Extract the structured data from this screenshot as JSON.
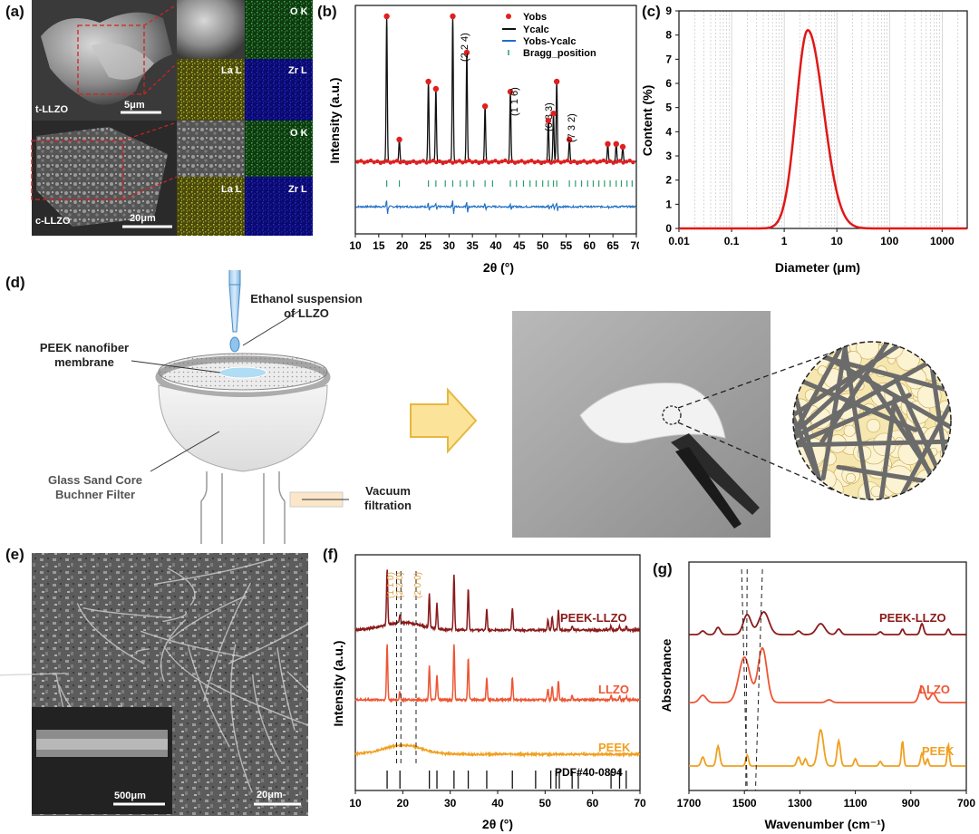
{
  "panels": {
    "a": "(a)",
    "b": "(b)",
    "c": "(c)",
    "d": "(d)",
    "e": "(e)",
    "f": "(f)",
    "g": "(g)"
  },
  "panel_a": {
    "top_label": "t-LLZO",
    "top_scale": "5μm",
    "bottom_label": "c-LLZO",
    "bottom_scale": "20μm",
    "maps": {
      "ok": "O K",
      "lal": "La L",
      "zrl": "Zr L"
    },
    "colors": {
      "ok": "#1f7a1f",
      "lal": "#8a8a1a",
      "zrl": "#1a1ab4"
    }
  },
  "panel_d": {
    "ethanol": "Ethanol suspension of LLZO",
    "ethanol_l1": "Ethanol suspension",
    "ethanol_l2": "of LLZO",
    "peek_l1": "PEEK nanofiber",
    "peek_l2": "membrane",
    "glass_l1": "Glass Sand Core",
    "glass_l2": "Buchner Filter",
    "vac_l1": "Vacuum",
    "vac_l2": "filtration"
  },
  "panel_e": {
    "scale_main": "20μm",
    "scale_inset": "500μm"
  },
  "chart_data": [
    {
      "id": "b",
      "type": "line",
      "xlabel": "2θ (°)",
      "ylabel": "Intensity (a.u.)",
      "xlim": [
        10,
        70
      ],
      "xticks": [
        10,
        15,
        20,
        25,
        30,
        35,
        40,
        45,
        50,
        55,
        60,
        65,
        70
      ],
      "legend": [
        "Yobs",
        "Ycalc",
        "Yobs-Ycalc",
        "Bragg_position"
      ],
      "legend_position": "top-right",
      "peaks_2theta": [
        16.7,
        19.4,
        25.6,
        27.2,
        30.8,
        33.8,
        37.7,
        43.1,
        51.2,
        52.3,
        53.0,
        55.7,
        63.9,
        65.7,
        67.1
      ],
      "annotations": [
        "(2 2 4)",
        "(1 1 6)",
        "(6 3 3)",
        "(7 3 2)"
      ],
      "series_colors": {
        "Yobs": "#e02020",
        "Ycalc": "#111111",
        "Yobs-Ycalc": "#1f6fc5",
        "Bragg_position": "#2a9d6e"
      }
    },
    {
      "id": "c",
      "type": "line",
      "xlabel": "Diameter (μm)",
      "ylabel": "Content (%)",
      "x_scale": "log",
      "xlim": [
        0.01,
        3000
      ],
      "xticks": [
        "0.01",
        "0.1",
        "1",
        "10",
        "100",
        "1000"
      ],
      "ylim": [
        0,
        9
      ],
      "yticks": [
        "0",
        "1",
        "2",
        "3",
        "4",
        "5",
        "6",
        "7",
        "8",
        "9"
      ],
      "peak": {
        "x": 2.8,
        "y": 8.2
      },
      "series_color": "#e01818"
    },
    {
      "id": "f",
      "type": "line",
      "xlabel": "2θ (°)",
      "ylabel": "Intensity (a.u.)",
      "xlim": [
        10,
        70
      ],
      "xticks": [
        "10",
        "20",
        "30",
        "40",
        "50",
        "60",
        "70"
      ],
      "series": [
        {
          "name": "PEEK-LLZO",
          "color": "#8b1a1a"
        },
        {
          "name": "LLZO",
          "color": "#ee5533"
        },
        {
          "name": "PEEK",
          "color": "#f0a020"
        }
      ],
      "annotations": [
        "(1 1 0)",
        "(2 2 0)",
        "(2 0 0)"
      ],
      "reference": "PDF#40-0894",
      "reference_positions": [
        16.7,
        19.4,
        25.6,
        27.2,
        30.8,
        33.8,
        37.7,
        43.1,
        48.0,
        51.2,
        52.3,
        53.0,
        55.7,
        57.0,
        63.9,
        65.7,
        67.1
      ]
    },
    {
      "id": "g",
      "type": "line",
      "xlabel": "Wavenumber (cm⁻¹)",
      "ylabel": "Absorbance",
      "xlim": [
        1700,
        700
      ],
      "xticks": [
        "1700",
        "1500",
        "1300",
        "1100",
        "900",
        "700"
      ],
      "series": [
        {
          "name": "PEEK-LLZO",
          "color": "#8b1a1a"
        },
        {
          "name": "LLZO",
          "color": "#ee5533"
        },
        {
          "name": "PEEK",
          "color": "#f0a020"
        }
      ]
    }
  ]
}
